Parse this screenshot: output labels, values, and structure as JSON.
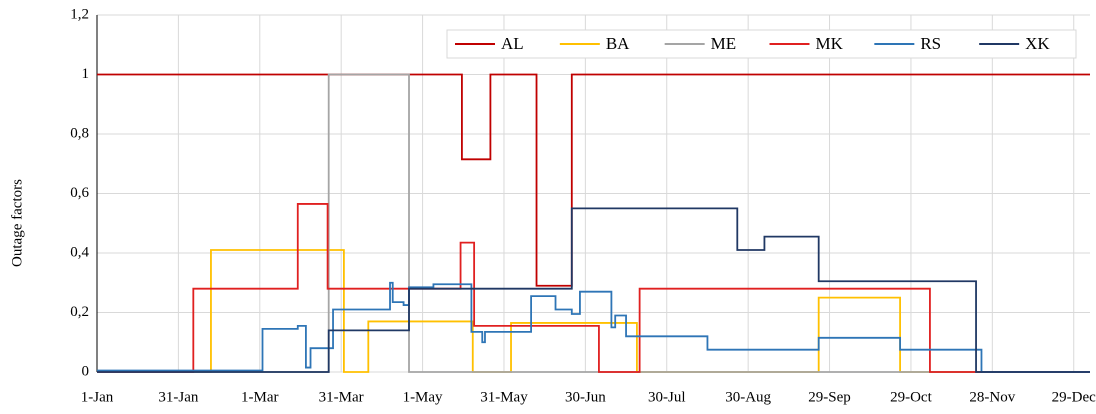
{
  "chart_data": {
    "type": "step-line",
    "y_label": "Outage factors",
    "xlim": [
      0,
      366
    ],
    "xticks": [
      {
        "value": 0,
        "label": "1-Jan"
      },
      {
        "value": 30,
        "label": "31-Jan"
      },
      {
        "value": 60,
        "label": "1-Mar"
      },
      {
        "value": 90,
        "label": "31-Mar"
      },
      {
        "value": 120,
        "label": "1-May"
      },
      {
        "value": 150,
        "label": "31-May"
      },
      {
        "value": 180,
        "label": "30-Jun"
      },
      {
        "value": 210,
        "label": "30-Jul"
      },
      {
        "value": 240,
        "label": "30-Aug"
      },
      {
        "value": 270,
        "label": "29-Sep"
      },
      {
        "value": 300,
        "label": "29-Oct"
      },
      {
        "value": 330,
        "label": "28-Nov"
      },
      {
        "value": 360,
        "label": "29-Dec"
      }
    ],
    "ylim": [
      0,
      1.2
    ],
    "yticks": [
      0,
      {
        "value": 0.2,
        "label": "0,2"
      },
      {
        "value": 0.4,
        "label": "0,4"
      },
      {
        "value": 0.6,
        "label": "0,6"
      },
      {
        "value": 0.8,
        "label": "0,8"
      },
      1,
      {
        "value": 1.2,
        "label": "1,2"
      }
    ],
    "grid": true,
    "legend": "top-right",
    "series": [
      {
        "name": "AL",
        "color": "#c00000",
        "x": [
          0,
          134.5,
          145,
          162,
          175,
          366
        ],
        "values": [
          1,
          0.715,
          1,
          0.29,
          1,
          1
        ]
      },
      {
        "name": "BA",
        "color": "#ffc000",
        "x": [
          0,
          42,
          91,
          100,
          138.5,
          152.6,
          199,
          266,
          296,
          366
        ],
        "values": [
          0,
          0.41,
          0,
          0.17,
          0,
          0.165,
          0,
          0.25,
          0,
          0
        ]
      },
      {
        "name": "ME",
        "color": "#a5a5a5",
        "x": [
          0,
          85.4,
          115,
          366
        ],
        "values": [
          0,
          1,
          0,
          0
        ]
      },
      {
        "name": "MK",
        "color": "#e02020",
        "x": [
          0,
          35.5,
          74,
          85,
          134,
          139,
          185,
          200,
          307,
          366
        ],
        "values": [
          0,
          0.28,
          0.565,
          0.28,
          0.435,
          0.155,
          0,
          0.28,
          0,
          0
        ]
      },
      {
        "name": "RS",
        "color": "#2e75b6",
        "x": [
          0,
          61,
          74,
          77,
          78.7,
          87,
          108,
          109,
          113,
          115,
          124,
          138,
          142,
          143,
          160,
          169,
          175,
          178,
          189.6,
          191,
          195,
          225,
          266,
          296,
          326,
          366
        ],
        "values": [
          0.005,
          0.145,
          0.155,
          0.015,
          0.08,
          0.21,
          0.3,
          0.235,
          0.225,
          0.285,
          0.295,
          0.135,
          0.1,
          0.135,
          0.255,
          0.21,
          0.195,
          0.27,
          0.15,
          0.19,
          0.12,
          0.075,
          0.115,
          0.075,
          0,
          0
        ]
      },
      {
        "name": "XK",
        "color": "#203864",
        "x": [
          0,
          85.4,
          115,
          175,
          236,
          246,
          266,
          324,
          366
        ],
        "values": [
          0,
          0.14,
          0.28,
          0.55,
          0.41,
          0.455,
          0.305,
          0,
          0
        ]
      }
    ]
  }
}
